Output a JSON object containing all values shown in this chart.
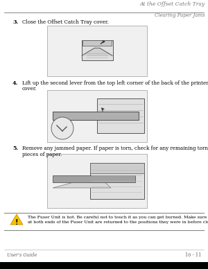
{
  "page_bg": "#ffffff",
  "header_line_color": "#555555",
  "header_text1": "At the Offset Catch Tray",
  "header_text2": "Clearing Paper Jams",
  "footer_line_color": "#aaaaaa",
  "footer_left": "User's Guide",
  "footer_right": "10 - 11",
  "step3_num": "3.",
  "step3_text": "Close the Offset Catch Tray cover.",
  "step4_num": "4.",
  "step4_line1": "Lift up the second lever from the top left corner of the back of the printer to open the rear",
  "step4_line2": "cover.",
  "step5_num": "5.",
  "step5_text": "Remove any jammed paper. If paper is torn, check for any remaining torn pieces of paper.",
  "warn_text1": "The Fuser Unit is hot. Be careful not to touch it as you can get burned. Make sure that the levers",
  "warn_text2": "at both ends of the Fuser Unit are returned to the positions they were in before clearing the jam.",
  "text_color": "#000000",
  "header_color1": "#888888",
  "header_color2": "#666666",
  "img_border": "#999999",
  "img_bg": "#f0f0f0",
  "printer_body": "#d8d8d8",
  "printer_dark": "#888888",
  "printer_line": "#555555",
  "warn_icon_yellow": "#f5c400",
  "warn_box_line": "#888888",
  "body_fs": 5.2,
  "header_fs": 5.5,
  "footer_fs": 4.8,
  "warn_fs": 4.5,
  "num_fs": 5.8
}
